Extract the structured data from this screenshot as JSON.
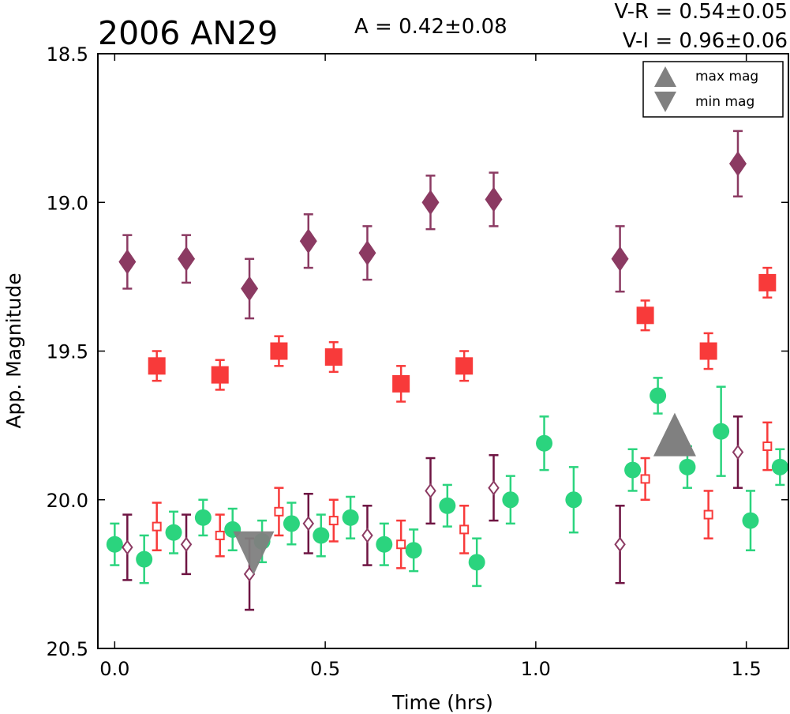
{
  "chart_data": {
    "type": "scatter",
    "title": "2006 AN29",
    "header": {
      "amplitude": "A  = 0.42±0.08",
      "v_r": "V-R = 0.54±0.05",
      "v_i": "V-I  = 0.96±0.06"
    },
    "xlabel": "Time (hrs)",
    "ylabel": "App. Magnitude",
    "xlim": [
      -0.04,
      1.6
    ],
    "ylim": [
      18.5,
      20.5
    ],
    "y_inverted": true,
    "grid": false,
    "xticks": [
      0.0,
      0.5,
      1.0,
      1.5
    ],
    "xtick_labels": [
      "0.0",
      "0.5",
      "1.0",
      "1.5"
    ],
    "yticks": [
      18.5,
      19.0,
      19.5,
      20.0,
      20.5
    ],
    "ytick_labels": [
      "18.5",
      "19.0",
      "19.5",
      "20.0",
      "20.5"
    ],
    "legend": {
      "placement": "top-right",
      "entries": [
        {
          "label": "max mag",
          "marker": "triangle-up",
          "color": "#808080"
        },
        {
          "label": "min mag",
          "marker": "triangle-down",
          "color": "#808080"
        }
      ]
    },
    "series": [
      {
        "marker": "diamond-filled",
        "color": "#8B3A62",
        "points": [
          {
            "x": 0.03,
            "y": 19.2,
            "err": 0.09
          },
          {
            "x": 0.17,
            "y": 19.19,
            "err": 0.08
          },
          {
            "x": 0.32,
            "y": 19.29,
            "err": 0.1
          },
          {
            "x": 0.46,
            "y": 19.13,
            "err": 0.09
          },
          {
            "x": 0.6,
            "y": 19.17,
            "err": 0.09
          },
          {
            "x": 0.75,
            "y": 19.0,
            "err": 0.09
          },
          {
            "x": 0.9,
            "y": 18.99,
            "err": 0.09
          },
          {
            "x": 1.2,
            "y": 19.19,
            "err": 0.11
          },
          {
            "x": 1.48,
            "y": 18.87,
            "err": 0.11
          }
        ]
      },
      {
        "marker": "square-filled",
        "color": "#F83A3A",
        "points": [
          {
            "x": 0.1,
            "y": 19.55,
            "err": 0.05
          },
          {
            "x": 0.25,
            "y": 19.58,
            "err": 0.05
          },
          {
            "x": 0.39,
            "y": 19.5,
            "err": 0.05
          },
          {
            "x": 0.52,
            "y": 19.52,
            "err": 0.05
          },
          {
            "x": 0.68,
            "y": 19.61,
            "err": 0.06
          },
          {
            "x": 0.83,
            "y": 19.55,
            "err": 0.05
          },
          {
            "x": 1.26,
            "y": 19.38,
            "err": 0.05
          },
          {
            "x": 1.41,
            "y": 19.5,
            "err": 0.06
          },
          {
            "x": 1.55,
            "y": 19.27,
            "err": 0.05
          }
        ]
      },
      {
        "marker": "circle-filled",
        "color": "#2BD47E",
        "points": [
          {
            "x": 0.0,
            "y": 20.15,
            "err": 0.07
          },
          {
            "x": 0.07,
            "y": 20.2,
            "err": 0.08
          },
          {
            "x": 0.14,
            "y": 20.11,
            "err": 0.07
          },
          {
            "x": 0.21,
            "y": 20.06,
            "err": 0.06
          },
          {
            "x": 0.28,
            "y": 20.1,
            "err": 0.07
          },
          {
            "x": 0.35,
            "y": 20.14,
            "err": 0.07
          },
          {
            "x": 0.42,
            "y": 20.08,
            "err": 0.07
          },
          {
            "x": 0.49,
            "y": 20.12,
            "err": 0.07
          },
          {
            "x": 0.56,
            "y": 20.06,
            "err": 0.07
          },
          {
            "x": 0.64,
            "y": 20.15,
            "err": 0.07
          },
          {
            "x": 0.71,
            "y": 20.17,
            "err": 0.07
          },
          {
            "x": 0.79,
            "y": 20.02,
            "err": 0.07
          },
          {
            "x": 0.86,
            "y": 20.21,
            "err": 0.08
          },
          {
            "x": 0.94,
            "y": 20.0,
            "err": 0.08
          },
          {
            "x": 1.02,
            "y": 19.81,
            "err": 0.09
          },
          {
            "x": 1.09,
            "y": 20.0,
            "err": 0.11
          },
          {
            "x": 1.23,
            "y": 19.9,
            "err": 0.07
          },
          {
            "x": 1.29,
            "y": 19.65,
            "err": 0.06
          },
          {
            "x": 1.36,
            "y": 19.89,
            "err": 0.07
          },
          {
            "x": 1.44,
            "y": 19.77,
            "err": 0.15
          },
          {
            "x": 1.51,
            "y": 20.07,
            "err": 0.1
          },
          {
            "x": 1.58,
            "y": 19.89,
            "err": 0.06
          }
        ]
      },
      {
        "marker": "diamond-open",
        "color": "#8B3A62",
        "errcolor": "#6E1442",
        "points": [
          {
            "x": 0.03,
            "y": 20.16,
            "err": 0.11
          },
          {
            "x": 0.17,
            "y": 20.15,
            "err": 0.1
          },
          {
            "x": 0.32,
            "y": 20.25,
            "err": 0.12
          },
          {
            "x": 0.46,
            "y": 20.08,
            "err": 0.1
          },
          {
            "x": 0.6,
            "y": 20.12,
            "err": 0.1
          },
          {
            "x": 0.75,
            "y": 19.97,
            "err": 0.11
          },
          {
            "x": 0.9,
            "y": 19.96,
            "err": 0.11
          },
          {
            "x": 1.2,
            "y": 20.15,
            "err": 0.13
          },
          {
            "x": 1.48,
            "y": 19.84,
            "err": 0.12
          }
        ]
      },
      {
        "marker": "square-open",
        "color": "#F83A3A",
        "points": [
          {
            "x": 0.1,
            "y": 20.09,
            "err": 0.08
          },
          {
            "x": 0.25,
            "y": 20.12,
            "err": 0.07
          },
          {
            "x": 0.39,
            "y": 20.04,
            "err": 0.08
          },
          {
            "x": 0.52,
            "y": 20.07,
            "err": 0.07
          },
          {
            "x": 0.68,
            "y": 20.15,
            "err": 0.08
          },
          {
            "x": 0.83,
            "y": 20.1,
            "err": 0.08
          },
          {
            "x": 1.26,
            "y": 19.93,
            "err": 0.07
          },
          {
            "x": 1.41,
            "y": 20.05,
            "err": 0.08
          },
          {
            "x": 1.55,
            "y": 19.82,
            "err": 0.08
          }
        ]
      },
      {
        "marker": "triangle-down",
        "color": "#808080",
        "points": [
          {
            "x": 0.33,
            "y": 20.17
          }
        ]
      },
      {
        "marker": "triangle-up",
        "color": "#808080",
        "points": [
          {
            "x": 1.33,
            "y": 19.79
          }
        ]
      }
    ]
  }
}
